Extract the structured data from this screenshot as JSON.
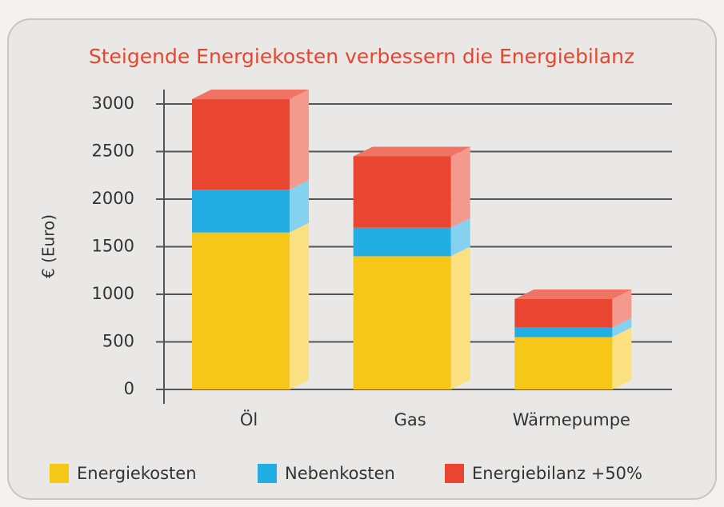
{
  "chart_data": {
    "type": "stacked_bar_3d",
    "title": "Steigende Energiekosten verbessern die Energiebilanz",
    "y_label": "€ (Euro)",
    "categories": [
      "Öl",
      "Gas",
      "Wärmepumpe"
    ],
    "series": [
      {
        "name": "Energiekosten",
        "color": "#f6c619",
        "values": [
          1650,
          1400,
          550
        ]
      },
      {
        "name": "Nebenkosten",
        "color": "#22aee3",
        "values": [
          450,
          300,
          100
        ]
      },
      {
        "name": "Energiebilanz +50%",
        "color": "#ea4530",
        "values": [
          950,
          750,
          300
        ]
      }
    ],
    "ylim": [
      0,
      3000
    ],
    "yticks": [
      0,
      500,
      1000,
      1500,
      2000,
      2500,
      3000
    ],
    "grid": true,
    "legend": "bottom"
  }
}
